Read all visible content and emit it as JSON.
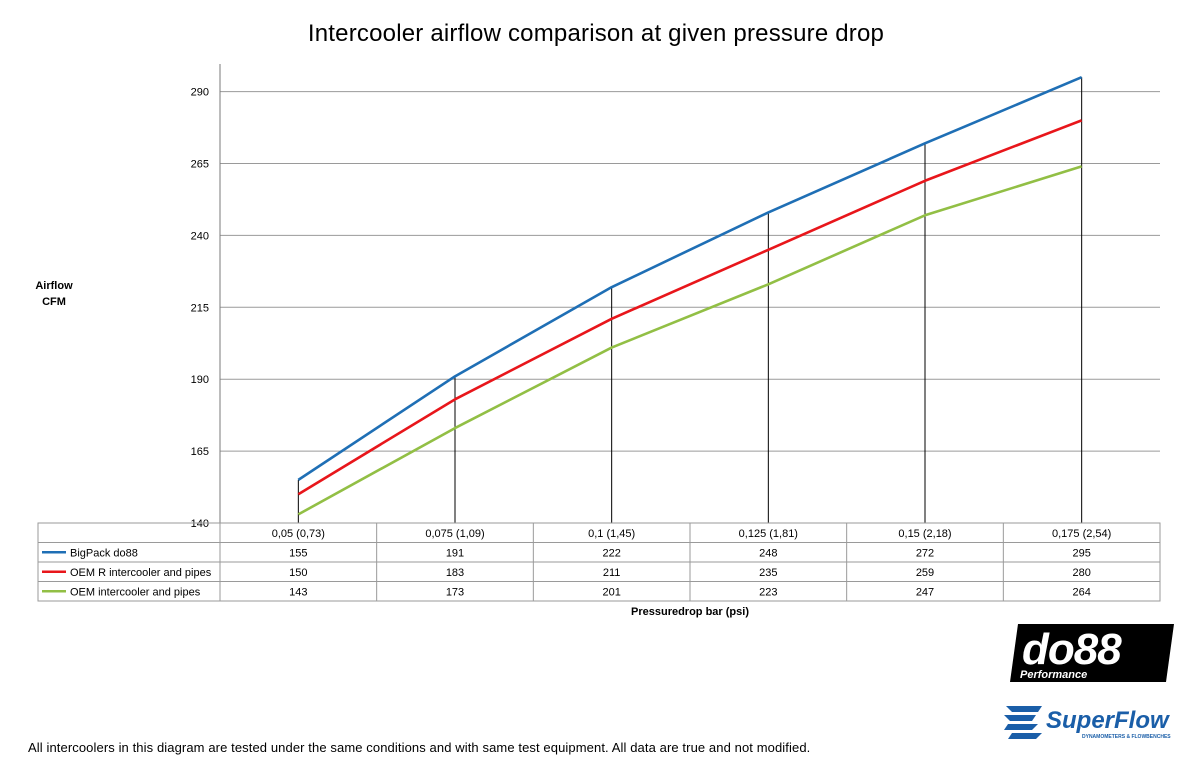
{
  "chart_data": {
    "type": "line",
    "title": "Intercooler airflow comparison at given pressure drop",
    "ylabel": "Airflow CFM",
    "ylabel_lines": [
      "Airflow",
      "CFM"
    ],
    "xlabel": "Pressuredrop bar (psi)",
    "categories": [
      "0,05 (0,73)",
      "0,075 (1,09)",
      "0,1 (1,45)",
      "0,125 (1,81)",
      "0,15 (2,18)",
      "0,175 (2,54)"
    ],
    "y_ticks": [
      140,
      165,
      190,
      215,
      240,
      265,
      290
    ],
    "ylim": [
      140,
      295
    ],
    "grid": true,
    "legend": "data-table",
    "series": [
      {
        "name": "BigPack do88",
        "color": "#1f6fb5",
        "values": [
          155,
          191,
          222,
          248,
          272,
          295
        ]
      },
      {
        "name": "OEM R intercooler and pipes",
        "color": "#e8161b",
        "values": [
          150,
          183,
          211,
          235,
          259,
          280
        ]
      },
      {
        "name": "OEM intercooler and pipes",
        "color": "#92bf45",
        "values": [
          143,
          173,
          201,
          223,
          247,
          264
        ]
      }
    ]
  },
  "footnote": "All intercoolers in this diagram are tested under the same conditions and with same test equipment. All data are true and not modified.",
  "logos": {
    "do88": {
      "text": "do88",
      "subtext": "Performance"
    },
    "superflow": {
      "text": "SuperFlow",
      "subtext": "DYNAMOMETERS & FLOWBENCHES"
    }
  }
}
